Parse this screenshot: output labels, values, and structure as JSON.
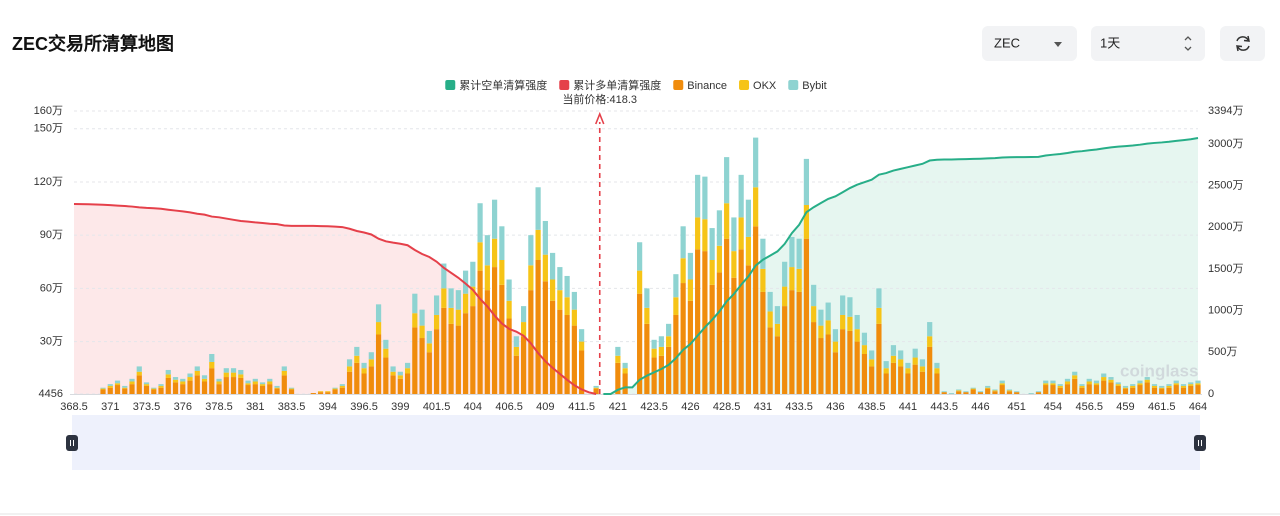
{
  "header": {
    "title": "ZEC交易所清算地图",
    "symbol": "ZEC",
    "interval": "1天"
  },
  "watermark": "coinglass",
  "chart_data": {
    "type": "bar",
    "stacked": true,
    "grid": true,
    "legend": "top",
    "annotation": "当前价格:418.3",
    "categories": [
      368.5,
      null,
      null,
      null,
      null,
      371,
      null,
      null,
      null,
      null,
      373.5,
      null,
      null,
      null,
      null,
      376,
      null,
      null,
      null,
      null,
      378.5,
      null,
      null,
      null,
      null,
      381,
      null,
      null,
      null,
      null,
      383.5,
      null,
      null,
      null,
      null,
      394,
      null,
      null,
      null,
      null,
      396.5,
      null,
      null,
      null,
      null,
      399,
      null,
      null,
      null,
      null,
      401.5,
      null,
      null,
      null,
      null,
      404,
      null,
      null,
      null,
      null,
      406.5,
      null,
      null,
      null,
      null,
      409,
      null,
      null,
      null,
      null,
      411.5,
      null,
      null,
      null,
      null,
      421,
      null,
      null,
      null,
      null,
      423.5,
      null,
      null,
      null,
      null,
      426,
      null,
      null,
      null,
      null,
      428.5,
      null,
      null,
      null,
      null,
      431,
      null,
      null,
      null,
      null,
      433.5,
      null,
      null,
      null,
      null,
      436,
      null,
      null,
      null,
      null,
      438.5,
      null,
      null,
      null,
      null,
      441,
      null,
      null,
      null,
      null,
      443.5,
      null,
      null,
      null,
      null,
      446,
      null,
      null,
      null,
      null,
      451,
      null,
      null,
      null,
      null,
      454,
      null,
      null,
      null,
      null,
      456.5,
      null,
      null,
      null,
      null,
      459,
      null,
      null,
      null,
      null,
      461.5,
      null,
      null,
      null,
      null,
      464
    ],
    "ylim": [
      4456,
      1600000
    ],
    "yticks": [
      4456,
      {
        "value": 300000,
        "label": "30万"
      },
      {
        "value": 600000,
        "label": "60万"
      },
      {
        "value": 900000,
        "label": "90万"
      },
      {
        "value": 1200000,
        "label": "120万"
      },
      {
        "value": 1500000,
        "label": "150万"
      },
      {
        "value": 1600000,
        "label": "160万"
      }
    ],
    "y2lim": [
      0,
      33940000
    ],
    "y2ticks": [
      0,
      {
        "value": 5000000,
        "label": "500万"
      },
      {
        "value": 10000000,
        "label": "1000万"
      },
      {
        "value": 15000000,
        "label": "1500万"
      },
      {
        "value": 20000000,
        "label": "2000万"
      },
      {
        "value": 25000000,
        "label": "2500万"
      },
      {
        "value": 30000000,
        "label": "3000万"
      },
      {
        "value": 33940000,
        "label": "3394万"
      }
    ],
    "series": [
      {
        "name": "累计空单清算强度",
        "type": "area",
        "axis": "y2",
        "color": "#27ae88",
        "fill": "#e6f6f0",
        "values": [
          null,
          null,
          null,
          null,
          null,
          null,
          null,
          null,
          null,
          null,
          null,
          null,
          null,
          null,
          null,
          null,
          null,
          null,
          null,
          null,
          null,
          null,
          null,
          null,
          null,
          null,
          null,
          null,
          null,
          null,
          null,
          null,
          null,
          null,
          null,
          null,
          null,
          null,
          null,
          null,
          null,
          null,
          null,
          null,
          null,
          null,
          null,
          null,
          null,
          null,
          null,
          null,
          null,
          null,
          null,
          null,
          null,
          null,
          null,
          null,
          null,
          null,
          null,
          null,
          null,
          null,
          null,
          null,
          null,
          null,
          null,
          null,
          null,
          0,
          0,
          500000,
          800000,
          800000,
          1700000,
          2200000,
          2600000,
          3000000,
          3500000,
          4300000,
          5300000,
          6000000,
          7000000,
          8000000,
          8900000,
          9900000,
          11100000,
          12000000,
          13100000,
          14100000,
          15400000,
          16100000,
          16600000,
          17100000,
          18000000,
          19300000,
          20300000,
          21800000,
          22400000,
          22900000,
          23400000,
          23700000,
          24200000,
          24700000,
          25100000,
          25400000,
          25700000,
          26300000,
          26500000,
          26800000,
          27000000,
          27200000,
          27400000,
          27600000,
          28000000,
          28100000,
          28120000,
          28130000,
          28150000,
          28170000,
          28200000,
          28220000,
          28260000,
          28290000,
          28360000,
          28390000,
          28410000,
          28410000,
          28420000,
          28440000,
          28600000,
          28700000,
          28780000,
          28900000,
          29050000,
          29120000,
          29230000,
          29320000,
          29460000,
          29580000,
          29670000,
          29730000,
          29800000,
          29900000,
          30030000,
          30110000,
          30170000,
          30250000,
          30360000,
          30450000,
          30550000,
          30700000
        ]
      },
      {
        "name": "累计多单清算强度",
        "type": "area",
        "axis": "y2",
        "color": "#e5404a",
        "fill": "#fde8e9",
        "values": [
          22790000,
          22770000,
          22750000,
          22720000,
          22690000,
          22650000,
          22590000,
          22540000,
          22480000,
          22380000,
          22320000,
          22280000,
          22220000,
          22100000,
          22000000,
          21900000,
          21780000,
          21620000,
          21510000,
          21280000,
          21190000,
          21040000,
          20890000,
          20750000,
          20670000,
          20580000,
          20510000,
          20420000,
          20370000,
          20210000,
          20170000,
          20170000,
          20170000,
          20160000,
          20140000,
          20120000,
          20080000,
          20020000,
          19820000,
          19550000,
          19370000,
          19130000,
          18620000,
          18310000,
          18150000,
          18020000,
          17840000,
          17270000,
          16790000,
          16430000,
          15870000,
          15130000,
          14530000,
          13940000,
          13240000,
          12490000,
          11410000,
          10510000,
          9410000,
          8460000,
          7810000,
          7480000,
          6980000,
          6080000,
          4910000,
          3930000,
          3130000,
          2410000,
          1700000,
          1050000,
          550000,
          200000,
          0,
          null,
          null,
          null,
          null,
          null,
          null,
          null,
          null,
          null,
          null,
          null,
          null,
          null,
          null,
          null,
          null,
          null,
          null,
          null,
          null,
          null,
          null,
          null,
          null,
          null,
          null,
          null,
          null,
          null,
          null,
          null,
          null,
          null,
          null,
          null,
          null,
          null,
          null,
          null,
          null,
          null,
          null,
          null,
          null,
          null,
          null,
          null,
          null,
          null,
          null,
          null,
          null,
          null,
          null,
          null,
          null,
          null,
          null,
          null,
          null,
          null,
          null,
          null,
          null,
          null,
          null,
          null,
          null,
          null,
          null,
          null,
          null,
          null,
          null,
          null,
          null,
          null,
          null,
          null,
          null,
          null,
          null,
          null
        ]
      },
      {
        "name": "Binance",
        "type": "bar",
        "color": "#f08c0c",
        "values": [
          0,
          0,
          0,
          0,
          30000,
          40000,
          55000,
          35000,
          60000,
          110000,
          50000,
          30000,
          40000,
          95000,
          70000,
          60000,
          80000,
          110000,
          75000,
          150000,
          60000,
          100000,
          100000,
          95000,
          55000,
          60000,
          50000,
          60000,
          35000,
          110000,
          30000,
          0,
          0,
          10000,
          15000,
          15000,
          30000,
          40000,
          130000,
          180000,
          120000,
          160000,
          340000,
          210000,
          110000,
          90000,
          120000,
          380000,
          320000,
          240000,
          370000,
          490000,
          400000,
          390000,
          460000,
          500000,
          700000,
          590000,
          720000,
          620000,
          430000,
          220000,
          330000,
          590000,
          760000,
          640000,
          530000,
          480000,
          450000,
          390000,
          250000,
          0,
          35000,
          0,
          0,
          180000,
          120000,
          0,
          570000,
          400000,
          210000,
          220000,
          270000,
          450000,
          630000,
          530000,
          820000,
          810000,
          620000,
          690000,
          880000,
          660000,
          820000,
          730000,
          950000,
          580000,
          380000,
          330000,
          500000,
          590000,
          580000,
          880000,
          410000,
          320000,
          340000,
          240000,
          370000,
          360000,
          300000,
          230000,
          160000,
          400000,
          120000,
          180000,
          160000,
          120000,
          170000,
          130000,
          270000,
          120000,
          15000,
          5000,
          20000,
          15000,
          30000,
          15000,
          35000,
          20000,
          55000,
          20000,
          15000,
          0,
          5000,
          15000,
          55000,
          55000,
          40000,
          60000,
          90000,
          40000,
          60000,
          55000,
          80000,
          70000,
          50000,
          35000,
          40000,
          55000,
          70000,
          40000,
          35000,
          40000,
          55000,
          40000,
          50000,
          55000
        ]
      },
      {
        "name": "OKX",
        "type": "bar",
        "color": "#f6c417",
        "values": [
          0,
          0,
          0,
          0,
          5000,
          10000,
          10000,
          5000,
          15000,
          20000,
          10000,
          5000,
          10000,
          20000,
          15000,
          15000,
          20000,
          25000,
          15000,
          35000,
          15000,
          25000,
          25000,
          20000,
          10000,
          15000,
          10000,
          15000,
          5000,
          25000,
          5000,
          0,
          0,
          0,
          5000,
          5000,
          5000,
          10000,
          30000,
          40000,
          30000,
          40000,
          70000,
          50000,
          20000,
          20000,
          30000,
          80000,
          70000,
          50000,
          80000,
          110000,
          90000,
          90000,
          110000,
          110000,
          160000,
          140000,
          160000,
          140000,
          100000,
          50000,
          80000,
          140000,
          170000,
          150000,
          120000,
          110000,
          100000,
          90000,
          50000,
          0,
          5000,
          0,
          0,
          40000,
          30000,
          0,
          130000,
          90000,
          50000,
          50000,
          60000,
          100000,
          140000,
          120000,
          180000,
          180000,
          140000,
          150000,
          200000,
          150000,
          180000,
          160000,
          220000,
          130000,
          90000,
          70000,
          110000,
          130000,
          130000,
          190000,
          90000,
          70000,
          80000,
          60000,
          80000,
          80000,
          70000,
          50000,
          40000,
          90000,
          30000,
          40000,
          40000,
          30000,
          40000,
          30000,
          60000,
          30000,
          0,
          0,
          5000,
          0,
          5000,
          0,
          5000,
          5000,
          10000,
          5000,
          0,
          0,
          0,
          0,
          10000,
          10000,
          10000,
          15000,
          20000,
          10000,
          15000,
          10000,
          20000,
          15000,
          10000,
          5000,
          10000,
          10000,
          15000,
          10000,
          5000,
          10000,
          10000,
          10000,
          10000,
          10000
        ]
      },
      {
        "name": "Bybit",
        "type": "bar",
        "color": "#8ed3d1",
        "values": [
          0,
          0,
          0,
          0,
          5000,
          10000,
          15000,
          10000,
          15000,
          30000,
          10000,
          5000,
          10000,
          25000,
          15000,
          15000,
          20000,
          25000,
          20000,
          45000,
          15000,
          25000,
          25000,
          25000,
          15000,
          15000,
          10000,
          15000,
          10000,
          25000,
          5000,
          0,
          0,
          0,
          0,
          0,
          5000,
          10000,
          40000,
          50000,
          30000,
          40000,
          100000,
          50000,
          30000,
          20000,
          30000,
          110000,
          90000,
          70000,
          110000,
          140000,
          110000,
          110000,
          130000,
          140000,
          220000,
          170000,
          220000,
          190000,
          120000,
          60000,
          90000,
          170000,
          240000,
          190000,
          150000,
          130000,
          120000,
          100000,
          70000,
          0,
          10000,
          0,
          0,
          50000,
          30000,
          0,
          160000,
          110000,
          50000,
          60000,
          70000,
          130000,
          180000,
          150000,
          240000,
          240000,
          180000,
          200000,
          260000,
          190000,
          240000,
          210000,
          280000,
          170000,
          110000,
          100000,
          140000,
          170000,
          170000,
          260000,
          120000,
          90000,
          100000,
          70000,
          110000,
          110000,
          80000,
          70000,
          50000,
          110000,
          40000,
          60000,
          50000,
          30000,
          50000,
          40000,
          80000,
          30000,
          5000,
          5000,
          5000,
          5000,
          5000,
          5000,
          10000,
          5000,
          15000,
          5000,
          5000,
          0,
          5000,
          5000,
          15000,
          15000,
          10000,
          15000,
          20000,
          10000,
          15000,
          15000,
          20000,
          15000,
          10000,
          10000,
          10000,
          15000,
          15000,
          10000,
          10000,
          10000,
          15000,
          10000,
          10000,
          15000
        ]
      }
    ]
  }
}
